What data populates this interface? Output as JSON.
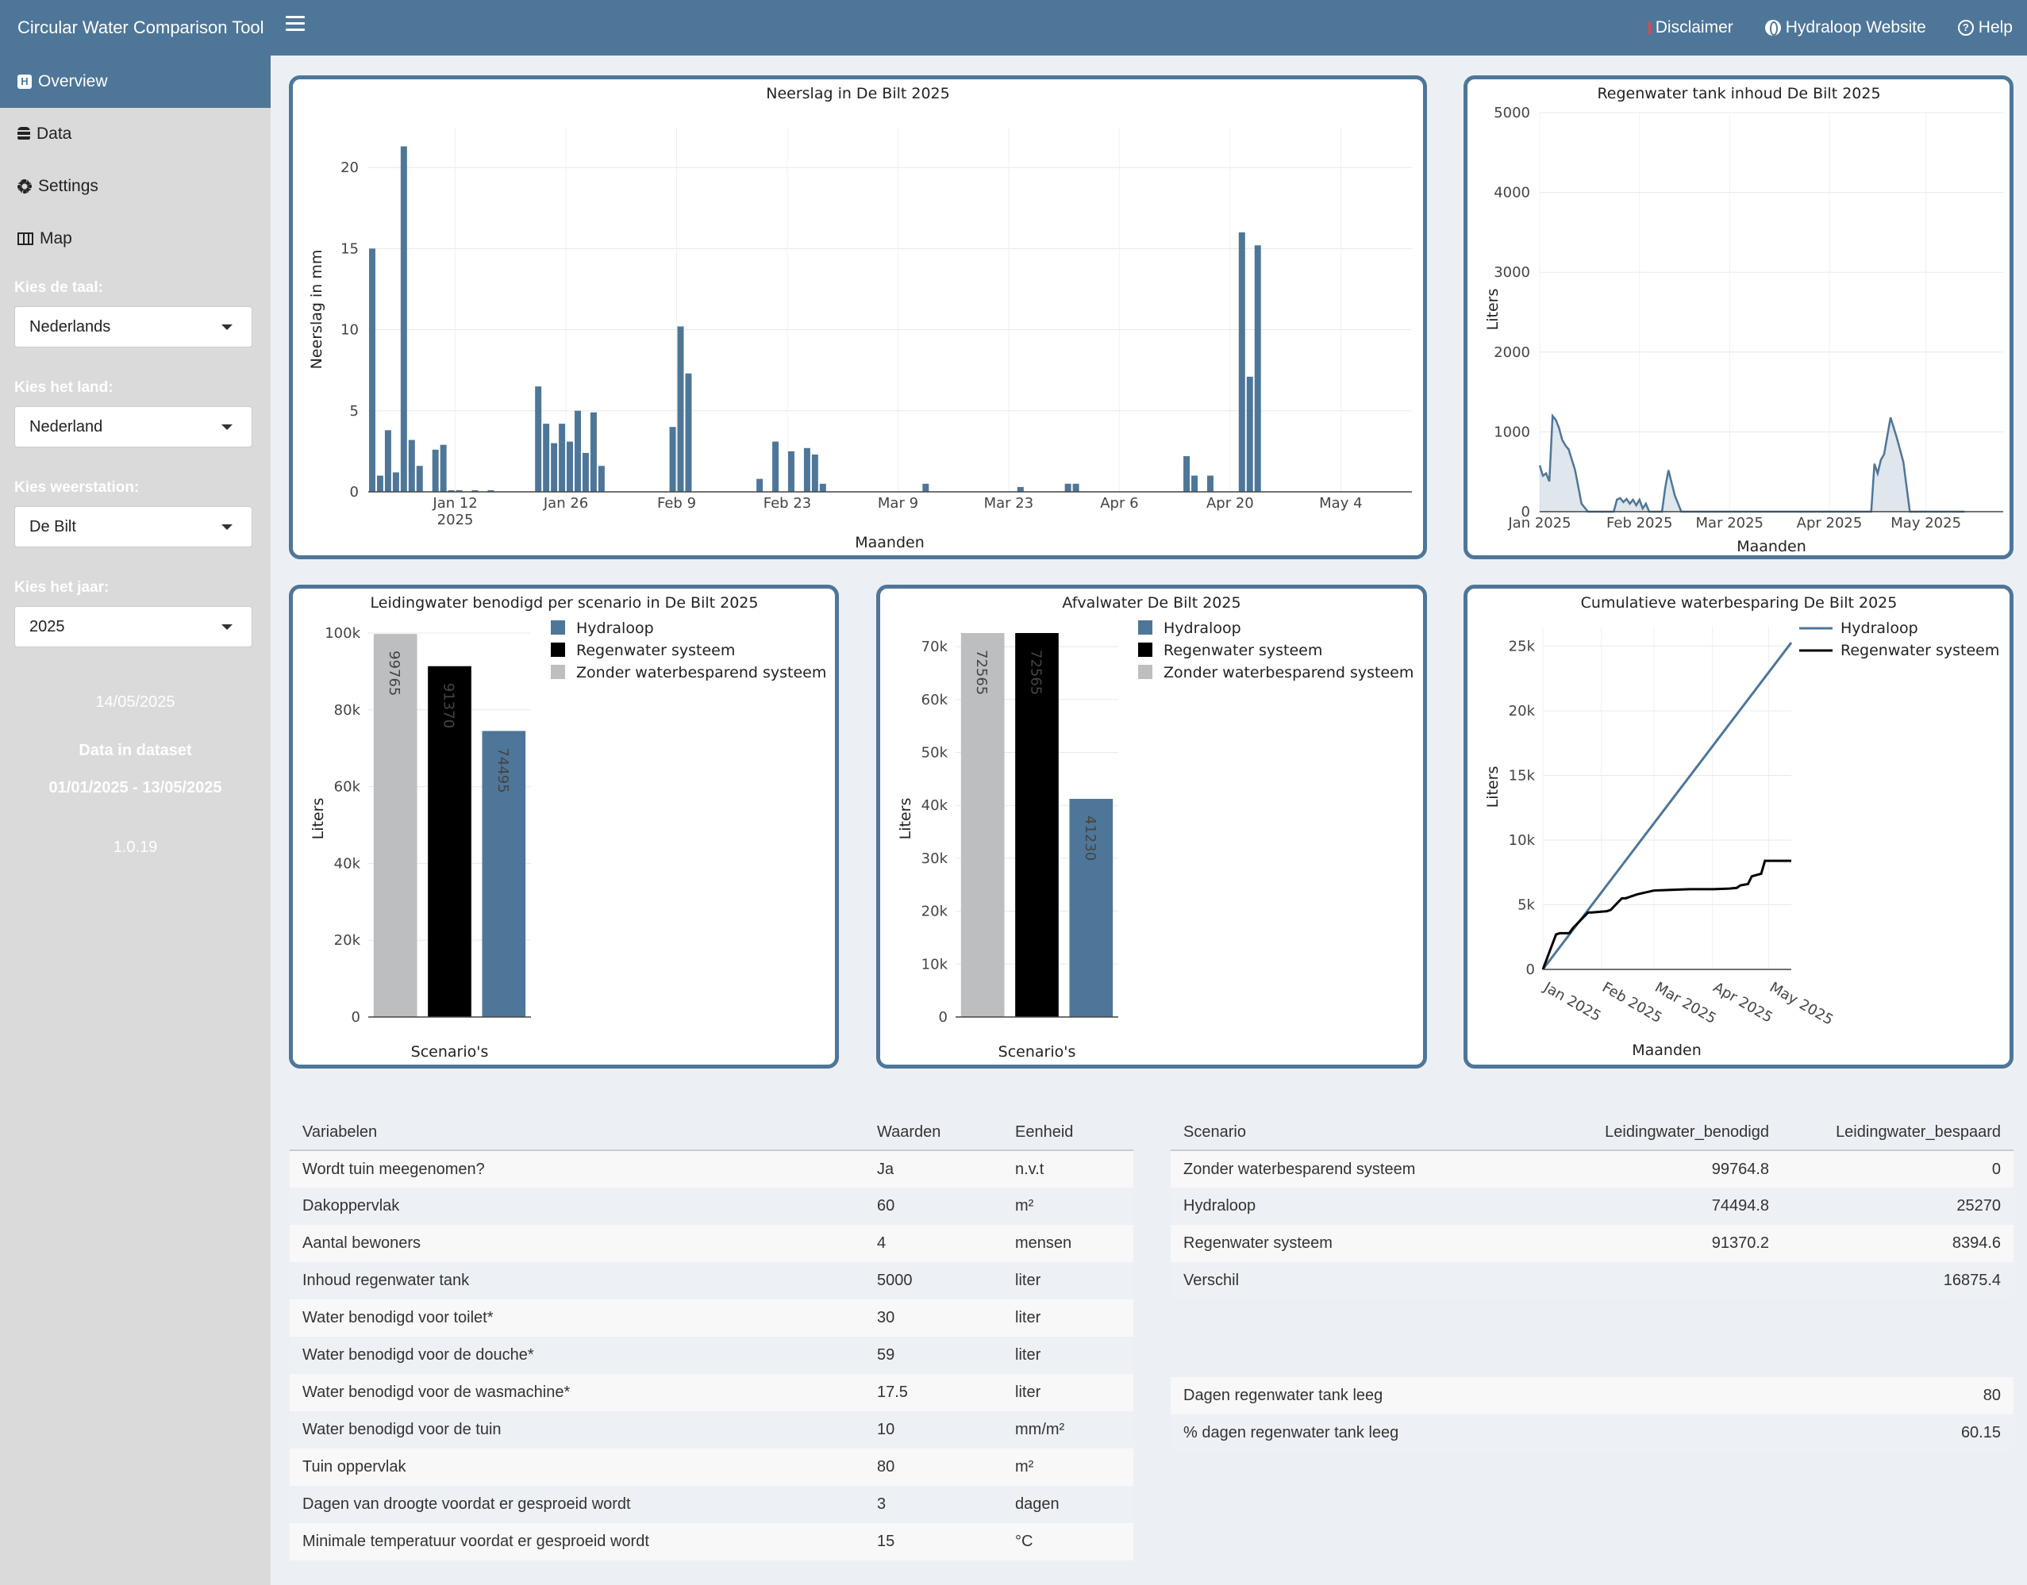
{
  "header": {
    "title": "Circular Water Comparison Tool",
    "disclaimer": "Disclaimer",
    "website": "Hydraloop Website",
    "help": "Help"
  },
  "sidebar": {
    "items": [
      {
        "label": "Overview",
        "icon": "h-square-icon",
        "active": true
      },
      {
        "label": "Data",
        "icon": "database-icon"
      },
      {
        "label": "Settings",
        "icon": "gear-icon"
      },
      {
        "label": "Map",
        "icon": "map-icon"
      }
    ],
    "language_label": "Kies de taal:",
    "language_value": "Nederlands",
    "country_label": "Kies het land:",
    "country_value": "Nederland",
    "station_label": "Kies weerstation:",
    "station_value": "De Bilt",
    "year_label": "Kies het jaar:",
    "year_value": "2025",
    "date": "14/05/2025",
    "dataset_label": "Data in dataset",
    "dataset_range": "01/01/2025 - 13/05/2025",
    "version": "1.0.19"
  },
  "colors": {
    "header": "#4e7698",
    "hydraloop": "#4e7698",
    "regenwater": "#000000",
    "zonder": "#bdbec0"
  },
  "charts": [
    {
      "type": "bar",
      "title": "Neerslag in De Bilt 2025",
      "xlabel": "Maanden",
      "ylabel": "Neerslag in mm",
      "ylim": [
        0,
        22.5
      ],
      "yticks": [
        0,
        5,
        10,
        15,
        20
      ],
      "xrange": [
        "2025-01-01",
        "2025-05-13"
      ],
      "xtick_labels": [
        "Jan 12",
        "Jan 26",
        "Feb 9",
        "Feb 23",
        "Mar 9",
        "Mar 23",
        "Apr 6",
        "Apr 20",
        "May 4"
      ],
      "xtick_sublabel": "2025",
      "x": [
        "2025-01-01",
        "2025-01-02",
        "2025-01-03",
        "2025-01-04",
        "2025-01-05",
        "2025-01-06",
        "2025-01-07",
        "2025-01-09",
        "2025-01-10",
        "2025-01-11",
        "2025-01-12",
        "2025-01-14",
        "2025-01-16",
        "2025-01-22",
        "2025-01-23",
        "2025-01-24",
        "2025-01-25",
        "2025-01-26",
        "2025-01-27",
        "2025-01-28",
        "2025-01-29",
        "2025-01-30",
        "2025-02-08",
        "2025-02-09",
        "2025-02-10",
        "2025-02-19",
        "2025-02-21",
        "2025-02-23",
        "2025-02-25",
        "2025-02-26",
        "2025-02-27",
        "2025-03-12",
        "2025-03-24",
        "2025-03-30",
        "2025-03-31",
        "2025-04-14",
        "2025-04-15",
        "2025-04-17",
        "2025-04-21",
        "2025-04-22",
        "2025-04-23"
      ],
      "values": [
        15.0,
        1.0,
        3.8,
        1.2,
        21.3,
        3.2,
        1.6,
        2.6,
        2.9,
        0.1,
        0.1,
        0.1,
        0.1,
        6.5,
        4.2,
        3.0,
        4.2,
        3.1,
        5.0,
        2.4,
        4.9,
        1.6,
        4.0,
        10.2,
        7.3,
        0.8,
        3.1,
        2.5,
        2.7,
        2.3,
        0.5,
        0.5,
        0.3,
        0.5,
        0.5,
        2.2,
        1.0,
        1.0,
        16.0,
        7.1,
        15.2
      ]
    },
    {
      "type": "area",
      "title": "Regenwater tank inhoud De Bilt 2025",
      "xlabel": "Maanden",
      "ylabel": "Liters",
      "ylim": [
        0,
        5000
      ],
      "yticks": [
        0,
        1000,
        2000,
        3000,
        4000,
        5000
      ],
      "xrange": [
        "2025-01-01",
        "2025-05-25"
      ],
      "xtick_labels": [
        "Jan 2025",
        "Feb 2025",
        "Mar 2025",
        "Apr 2025",
        "May 2025"
      ],
      "x": [
        "2025-01-01",
        "2025-01-02",
        "2025-01-03",
        "2025-01-04",
        "2025-01-05",
        "2025-01-06",
        "2025-01-07",
        "2025-01-08",
        "2025-01-09",
        "2025-01-10",
        "2025-01-12",
        "2025-01-14",
        "2025-01-16",
        "2025-01-18",
        "2025-01-20",
        "2025-01-22",
        "2025-01-24",
        "2025-01-25",
        "2025-01-26",
        "2025-01-27",
        "2025-01-28",
        "2025-01-29",
        "2025-01-30",
        "2025-01-31",
        "2025-02-01",
        "2025-02-02",
        "2025-02-03",
        "2025-02-04",
        "2025-02-05",
        "2025-02-06",
        "2025-02-08",
        "2025-02-09",
        "2025-02-10",
        "2025-02-12",
        "2025-02-14",
        "2025-02-16",
        "2025-04-14",
        "2025-04-15",
        "2025-04-16",
        "2025-04-17",
        "2025-04-18",
        "2025-04-20",
        "2025-04-22",
        "2025-04-24",
        "2025-04-26",
        "2025-04-30",
        "2025-05-13"
      ],
      "values": [
        580,
        450,
        480,
        380,
        1200,
        1150,
        1050,
        900,
        830,
        780,
        520,
        100,
        0,
        0,
        0,
        0,
        0,
        150,
        170,
        120,
        160,
        100,
        150,
        80,
        150,
        40,
        100,
        0,
        0,
        0,
        0,
        300,
        520,
        200,
        0,
        0,
        0,
        600,
        480,
        650,
        720,
        1180,
        920,
        620,
        0,
        0,
        0
      ]
    },
    {
      "type": "bar",
      "title": "Leidingwater benodigd per scenario in De Bilt 2025",
      "xlabel": "Scenario's",
      "ylabel": "Liters",
      "ylim": [
        0,
        100000
      ],
      "yticks": [
        0,
        20000,
        40000,
        60000,
        80000,
        100000
      ],
      "ytick_labels": [
        "0",
        "20k",
        "40k",
        "60k",
        "80k",
        "100k"
      ],
      "series": [
        {
          "name": "Zonder waterbesparend systeem",
          "value": 99765,
          "label": "99765"
        },
        {
          "name": "Regenwater systeem",
          "value": 91370,
          "label": "91370"
        },
        {
          "name": "Hydraloop",
          "value": 74495,
          "label": "74495"
        }
      ],
      "legend": [
        "Hydraloop",
        "Regenwater systeem",
        "Zonder waterbesparend systeem"
      ]
    },
    {
      "type": "bar",
      "title": "Afvalwater De Bilt 2025",
      "xlabel": "Scenario's",
      "ylabel": "Liters",
      "ylim": [
        0,
        72565
      ],
      "yticks": [
        0,
        10000,
        20000,
        30000,
        40000,
        50000,
        60000,
        70000
      ],
      "ytick_labels": [
        "0",
        "10k",
        "20k",
        "30k",
        "40k",
        "50k",
        "60k",
        "70k"
      ],
      "series": [
        {
          "name": "Zonder waterbesparend systeem",
          "value": 72565,
          "label": "72565"
        },
        {
          "name": "Regenwater systeem",
          "value": 72565,
          "label": "72565"
        },
        {
          "name": "Hydraloop",
          "value": 41230,
          "label": "41230"
        }
      ],
      "legend": [
        "Hydraloop",
        "Regenwater systeem",
        "Zonder waterbesparend systeem"
      ]
    },
    {
      "type": "line",
      "title": "Cumulatieve waterbesparing De Bilt 2025",
      "xlabel": "Maanden",
      "ylabel": "Liters",
      "ylim": [
        0,
        26500
      ],
      "yticks": [
        0,
        5000,
        10000,
        15000,
        20000,
        25000
      ],
      "ytick_labels": [
        "0",
        "5k",
        "10k",
        "15k",
        "20k",
        "25k"
      ],
      "xrange": [
        "2025-01-01",
        "2025-05-13"
      ],
      "xtick_labels": [
        "Jan 2025",
        "Feb 2025",
        "Mar 2025",
        "Apr 2025",
        "May 2025"
      ],
      "series": [
        {
          "name": "Hydraloop",
          "x": [
            "2025-01-01",
            "2025-05-13"
          ],
          "values": [
            0,
            25270
          ]
        },
        {
          "name": "Regenwater systeem",
          "x": [
            "2025-01-01",
            "2025-01-08",
            "2025-01-10",
            "2025-01-15",
            "2025-01-17",
            "2025-01-25",
            "2025-01-27",
            "2025-02-04",
            "2025-02-06",
            "2025-02-12",
            "2025-02-14",
            "2025-02-20",
            "2025-03-01",
            "2025-03-10",
            "2025-03-20",
            "2025-04-01",
            "2025-04-10",
            "2025-04-14",
            "2025-04-16",
            "2025-04-20",
            "2025-04-22",
            "2025-04-27",
            "2025-04-29",
            "2025-05-13"
          ],
          "values": [
            0,
            2700,
            2800,
            2800,
            3200,
            4400,
            4400,
            4500,
            4600,
            5500,
            5500,
            5800,
            6100,
            6150,
            6200,
            6200,
            6250,
            6300,
            6500,
            6600,
            7200,
            7400,
            8394,
            8394
          ]
        }
      ],
      "legend": [
        "Hydraloop",
        "Regenwater systeem"
      ]
    }
  ],
  "table_vars": {
    "headers": [
      "Variabelen",
      "Waarden",
      "Eenheid"
    ],
    "rows": [
      [
        "Wordt tuin meegenomen?",
        "Ja",
        "n.v.t"
      ],
      [
        "Dakoppervlak",
        "60",
        "m²"
      ],
      [
        "Aantal bewoners",
        "4",
        "mensen"
      ],
      [
        "Inhoud regenwater tank",
        "5000",
        "liter"
      ],
      [
        "Water benodigd voor toilet*",
        "30",
        "liter"
      ],
      [
        "Water benodigd voor de douche*",
        "59",
        "liter"
      ],
      [
        "Water benodigd voor de wasmachine*",
        "17.5",
        "liter"
      ],
      [
        "Water benodigd voor de tuin",
        "10",
        "mm/m²"
      ],
      [
        "Tuin oppervlak",
        "80",
        "m²"
      ],
      [
        "Dagen van droogte voordat er gesproeid wordt",
        "3",
        "dagen"
      ],
      [
        "Minimale temperatuur voordat er gesproeid wordt",
        "15",
        "°C"
      ]
    ]
  },
  "table_scen": {
    "headers": [
      "Scenario",
      "Leidingwater_benodigd",
      "Leidingwater_bespaard"
    ],
    "rows": [
      [
        "Zonder waterbesparend systeem",
        "99764.8",
        "0"
      ],
      [
        "Hydraloop",
        "74494.8",
        "25270"
      ],
      [
        "Regenwater systeem",
        "91370.2",
        "8394.6"
      ],
      [
        "Verschil",
        "",
        "16875.4"
      ]
    ]
  },
  "table_tank": {
    "rows": [
      [
        "Dagen regenwater tank leeg",
        "80"
      ],
      [
        "% dagen regenwater tank leeg",
        "60.15"
      ]
    ]
  }
}
